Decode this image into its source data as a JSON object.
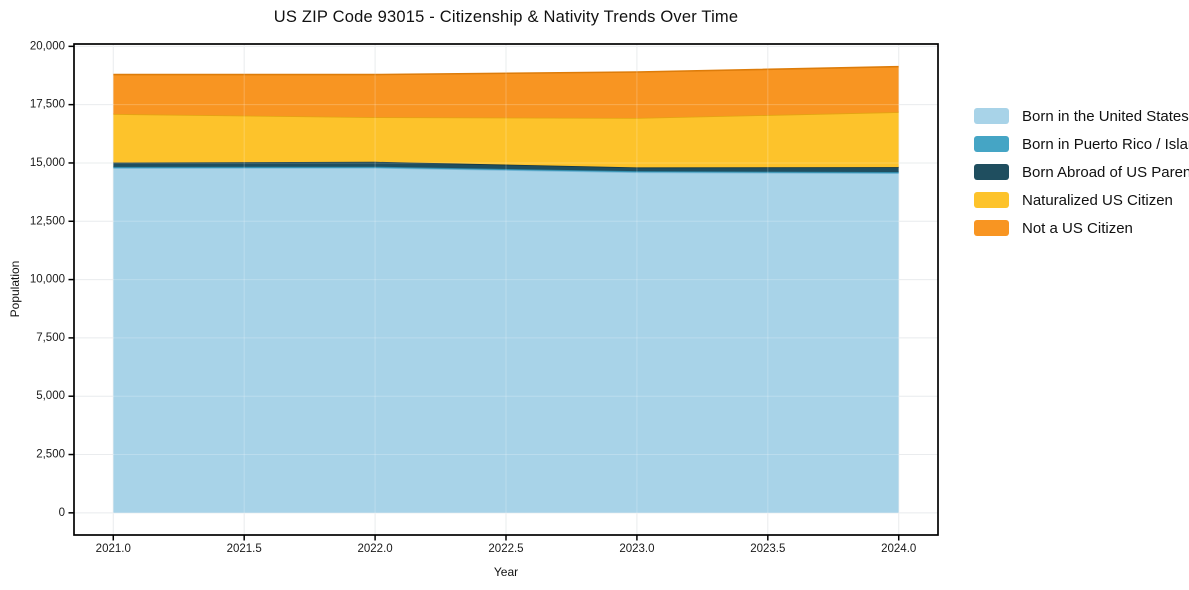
{
  "chart_data": {
    "type": "area",
    "stacked": true,
    "title": "US ZIP Code 93015 - Citizenship & Nativity Trends Over Time",
    "xlabel": "Year",
    "ylabel": "Population",
    "grid": true,
    "legend_position": "right-outside",
    "x": [
      2021,
      2022,
      2023,
      2024
    ],
    "xlim": [
      2020.85,
      2024.15
    ],
    "ylim": [
      -950,
      20100
    ],
    "xticks": {
      "values": [
        2021.0,
        2021.5,
        2022.0,
        2022.5,
        2023.0,
        2023.5,
        2024.0
      ],
      "labels": [
        "2021.0",
        "2021.5",
        "2022.0",
        "2022.5",
        "2023.0",
        "2023.5",
        "2024.0"
      ]
    },
    "yticks": {
      "values": [
        0,
        2500,
        5000,
        7500,
        10000,
        12500,
        15000,
        17500,
        20000
      ],
      "labels": [
        "0",
        "2,500",
        "5,000",
        "7,500",
        "10,000",
        "12,500",
        "15,000",
        "17,500",
        "20,000"
      ]
    },
    "series": [
      {
        "name": "Born in the United States",
        "color": "#a8d3e8",
        "edge_color": "#7db9d8",
        "values": [
          14780,
          14790,
          14600,
          14560
        ]
      },
      {
        "name": "Born in Puerto Rico / Islands",
        "color": "#45a5c5",
        "edge_color": "#2e85a3",
        "values": [
          50,
          50,
          50,
          50
        ]
      },
      {
        "name": "Born Abroad of US Parent(s)",
        "color": "#1f4e5f",
        "edge_color": "#153743",
        "values": [
          190,
          210,
          160,
          210
        ]
      },
      {
        "name": "Naturalized US Citizen",
        "color": "#fdc32b",
        "edge_color": "#e2a411",
        "values": [
          2080,
          1910,
          2120,
          2360
        ]
      },
      {
        "name": "Not a US Citizen",
        "color": "#f89522",
        "edge_color": "#dd7c0a",
        "values": [
          1690,
          1830,
          1970,
          1950
        ]
      }
    ],
    "totals_by_year": [
      18790,
      18790,
      18900,
      19130
    ],
    "colors": {
      "grid": "#e4e7ea",
      "spine": "#000000",
      "tick_text": "#1a1a1a",
      "background": "#ffffff"
    }
  }
}
